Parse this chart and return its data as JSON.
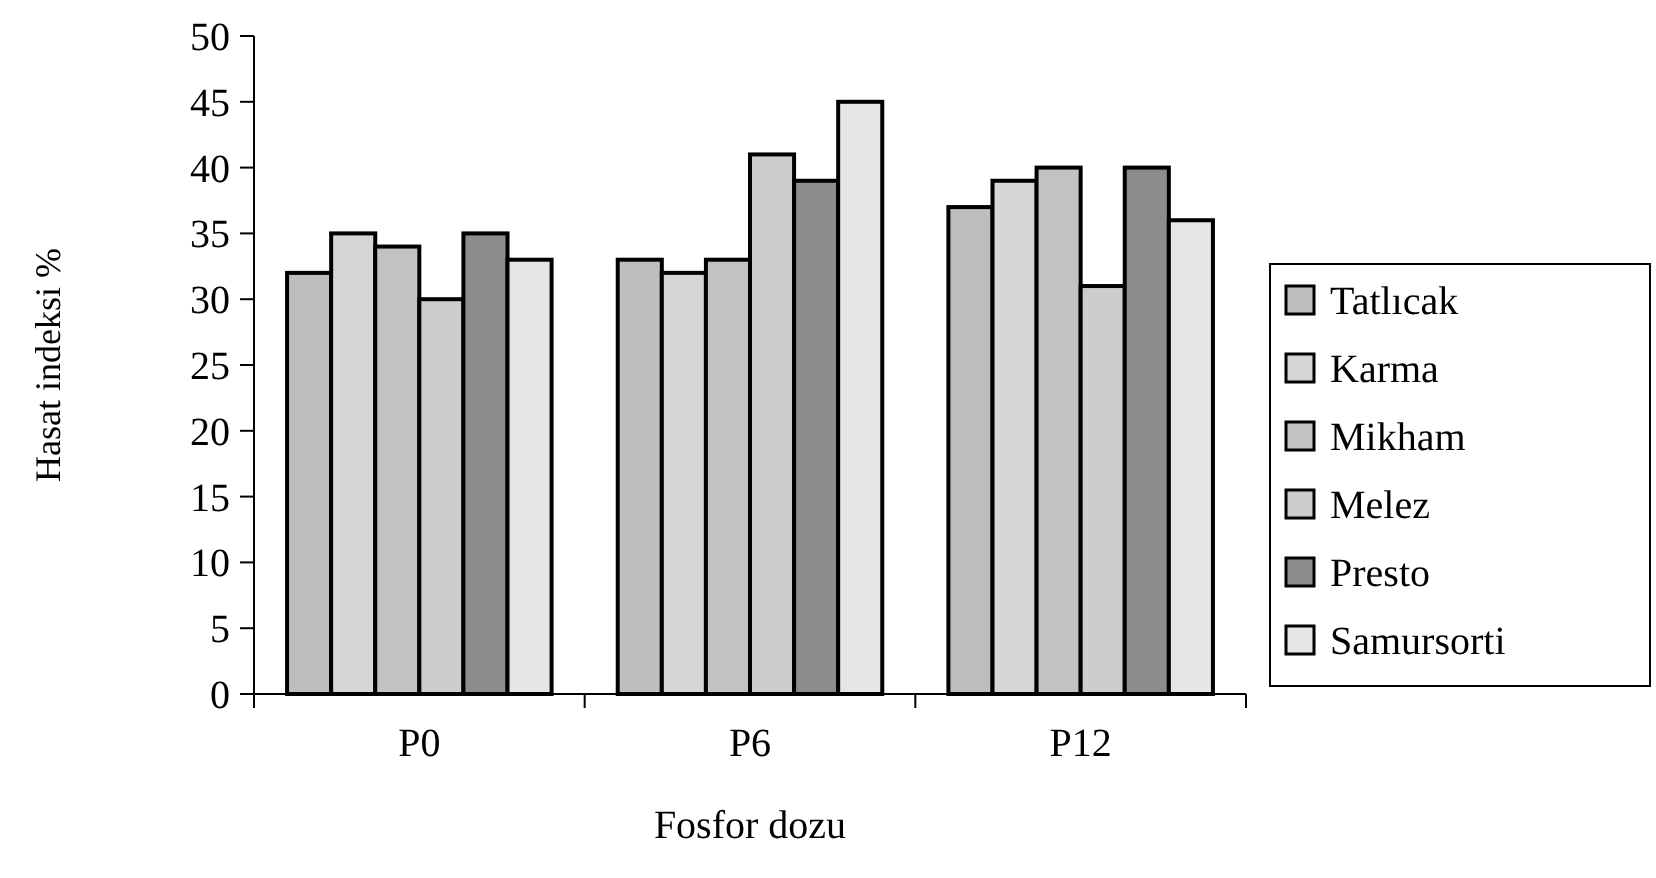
{
  "chart_data": {
    "type": "bar",
    "xlabel": "Fosfor dozu",
    "ylabel": "Hasat indeksi %",
    "categories": [
      "P0",
      "P6",
      "P12"
    ],
    "series": [
      {
        "name": "Tatlıcak",
        "color": "#bebebe",
        "values": [
          32,
          33,
          37
        ]
      },
      {
        "name": "Karma",
        "color": "#d6d6d6",
        "values": [
          35,
          32,
          39
        ]
      },
      {
        "name": "Mikham",
        "color": "#c2c2c2",
        "values": [
          34,
          33,
          40
        ]
      },
      {
        "name": "Melez",
        "color": "#cdcdcd",
        "values": [
          30,
          41,
          31
        ]
      },
      {
        "name": "Presto",
        "color": "#8c8c8c",
        "values": [
          35,
          39,
          40
        ]
      },
      {
        "name": "Samursorti",
        "color": "#e6e6e6",
        "values": [
          33,
          45,
          36
        ]
      }
    ],
    "ylim": [
      0,
      50
    ],
    "yticks": [
      0,
      5,
      10,
      15,
      20,
      25,
      30,
      35,
      40,
      45,
      50
    ],
    "grid": false,
    "legend": "right"
  }
}
